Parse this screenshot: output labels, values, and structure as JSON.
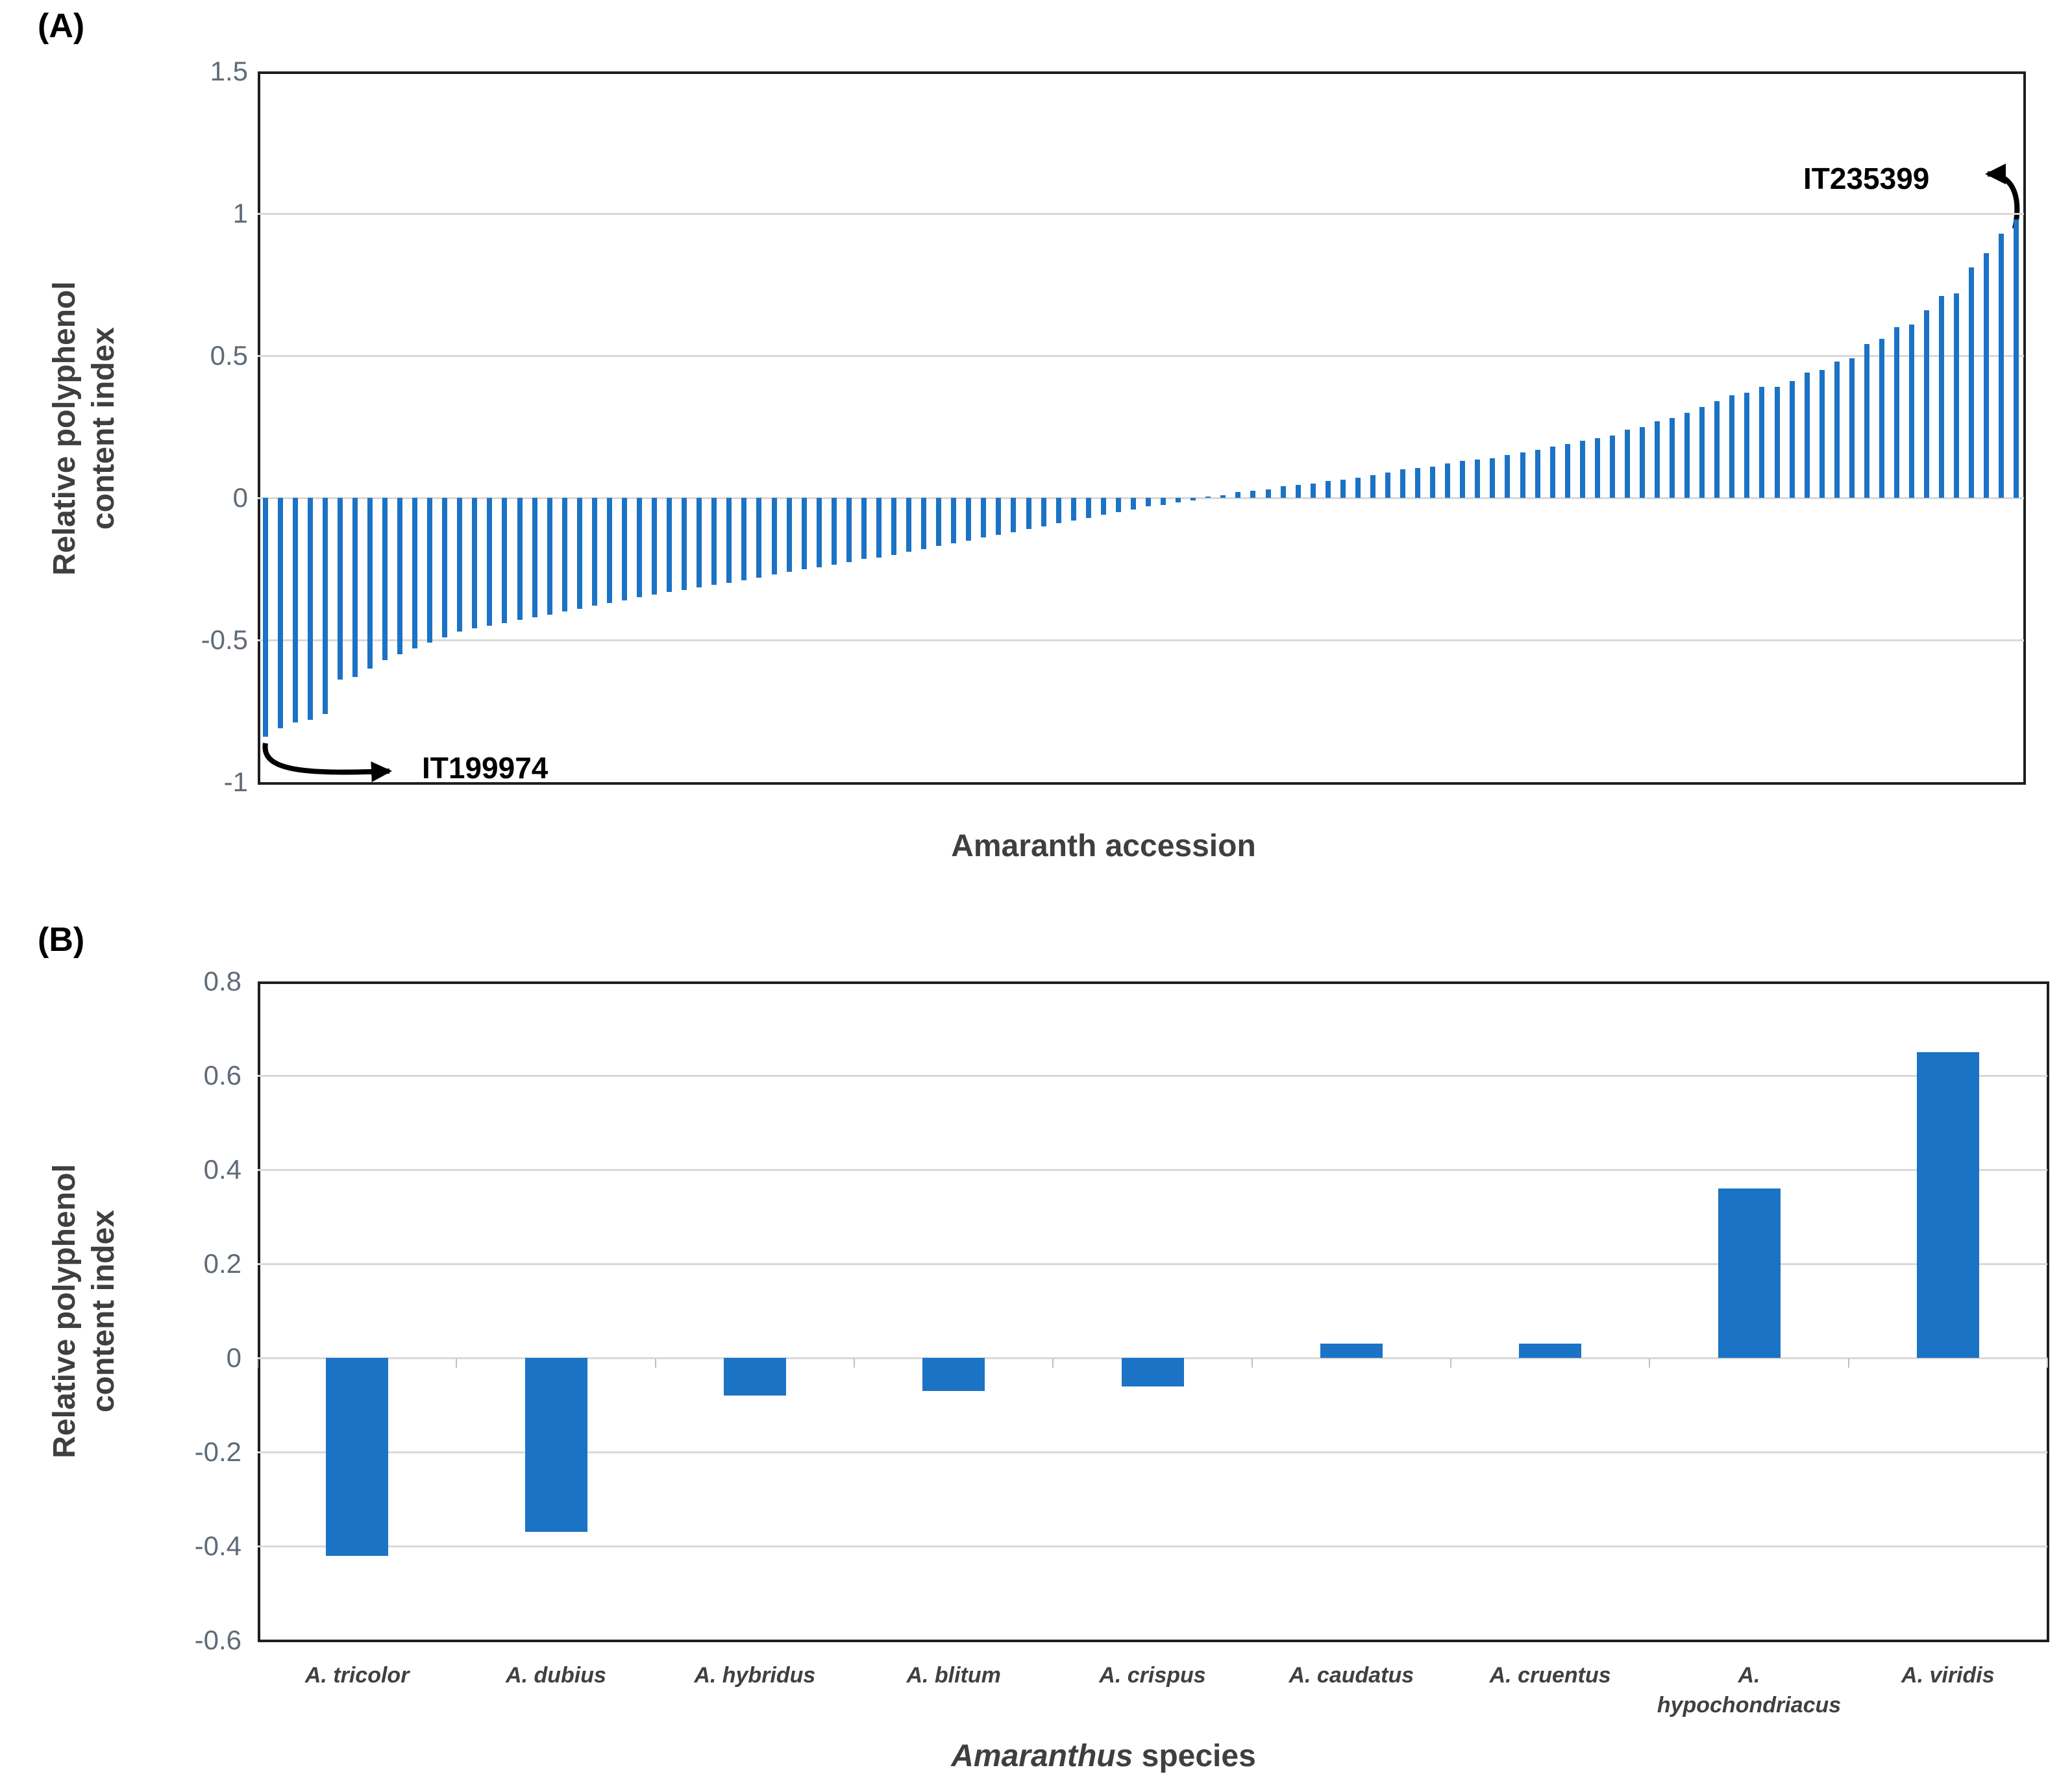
{
  "colors": {
    "bar_blue": "#1b73c5",
    "gridline_gray": "#d9d9d9",
    "frame_black": "#1f1f1f",
    "tick_text_gray": "#5f6b78",
    "title_text_gray": "#3f3f3f"
  },
  "panel_a": {
    "panel_label": "(A)",
    "y_axis_title_line1": "Relative polyphenol",
    "y_axis_title_line2": "content index",
    "x_axis_title": "Amaranth accession",
    "annotation_min": "IT199974",
    "annotation_max": "IT235399"
  },
  "panel_b": {
    "panel_label": "(B)",
    "y_axis_title_line1": "Relative polyphenol",
    "y_axis_title_line2": "content index",
    "x_axis_title_italic": "Amaranthus",
    "x_axis_title_rest": " species"
  },
  "chart_data": [
    {
      "panel": "A",
      "type": "bar",
      "title": "",
      "xlabel": "Amaranth accession",
      "ylabel": "Relative polyphenol content index",
      "ylim": [
        -1,
        1.5
      ],
      "y_ticks": [
        1.5,
        1,
        0.5,
        0,
        -0.5,
        -1
      ],
      "gridlines": [
        1,
        0.5,
        0,
        -0.5
      ],
      "legend": false,
      "accession_first": "IT199974",
      "accession_last": "IT235399",
      "annotations": [
        {
          "text": "IT199974",
          "points_to": "lowest bar (first accession)"
        },
        {
          "text": "IT235399",
          "points_to": "highest bar (last accession)"
        }
      ],
      "values": [
        -0.84,
        -0.81,
        -0.79,
        -0.78,
        -0.76,
        -0.64,
        -0.63,
        -0.6,
        -0.57,
        -0.55,
        -0.53,
        -0.51,
        -0.49,
        -0.47,
        -0.46,
        -0.45,
        -0.44,
        -0.43,
        -0.42,
        -0.41,
        -0.4,
        -0.39,
        -0.38,
        -0.37,
        -0.36,
        -0.35,
        -0.34,
        -0.33,
        -0.325,
        -0.315,
        -0.305,
        -0.3,
        -0.29,
        -0.28,
        -0.27,
        -0.26,
        -0.25,
        -0.245,
        -0.235,
        -0.225,
        -0.215,
        -0.21,
        -0.2,
        -0.19,
        -0.18,
        -0.17,
        -0.16,
        -0.15,
        -0.14,
        -0.13,
        -0.12,
        -0.11,
        -0.1,
        -0.09,
        -0.08,
        -0.07,
        -0.06,
        -0.05,
        -0.04,
        -0.03,
        -0.025,
        -0.015,
        -0.01,
        0.005,
        0.01,
        0.02,
        0.025,
        0.03,
        0.04,
        0.045,
        0.05,
        0.06,
        0.065,
        0.07,
        0.08,
        0.09,
        0.1,
        0.105,
        0.11,
        0.12,
        0.13,
        0.135,
        0.14,
        0.15,
        0.16,
        0.17,
        0.18,
        0.19,
        0.2,
        0.21,
        0.22,
        0.24,
        0.25,
        0.27,
        0.28,
        0.3,
        0.32,
        0.34,
        0.36,
        0.37,
        0.39,
        0.39,
        0.41,
        0.44,
        0.45,
        0.48,
        0.49,
        0.54,
        0.56,
        0.6,
        0.61,
        0.66,
        0.71,
        0.72,
        0.81,
        0.86,
        0.93,
        0.98
      ]
    },
    {
      "panel": "B",
      "type": "bar",
      "title": "",
      "xlabel": "Amaranthus species",
      "ylabel": "Relative polyphenol content index",
      "ylim": [
        -0.6,
        0.8
      ],
      "y_ticks": [
        0.8,
        0.6,
        0.4,
        0.2,
        0,
        -0.2,
        -0.4,
        -0.6
      ],
      "gridlines": [
        0.6,
        0.4,
        0.2,
        0,
        -0.2,
        -0.4
      ],
      "legend": false,
      "categories": [
        "A. tricolor",
        "A. dubius",
        "A. hybridus",
        "A. blitum",
        "A. crispus",
        "A. caudatus",
        "A. cruentus",
        "A. hypochondriacus",
        "A. viridis"
      ],
      "category_display_lines": [
        [
          "A. tricolor"
        ],
        [
          "A. dubius"
        ],
        [
          "A. hybridus"
        ],
        [
          "A. blitum"
        ],
        [
          "A. crispus"
        ],
        [
          "A. caudatus"
        ],
        [
          "A. cruentus"
        ],
        [
          "A.",
          "hypochondriacus"
        ],
        [
          "A. viridis"
        ]
      ],
      "values": [
        -0.42,
        -0.37,
        -0.08,
        -0.07,
        -0.06,
        0.03,
        0.03,
        0.36,
        0.65
      ]
    }
  ]
}
